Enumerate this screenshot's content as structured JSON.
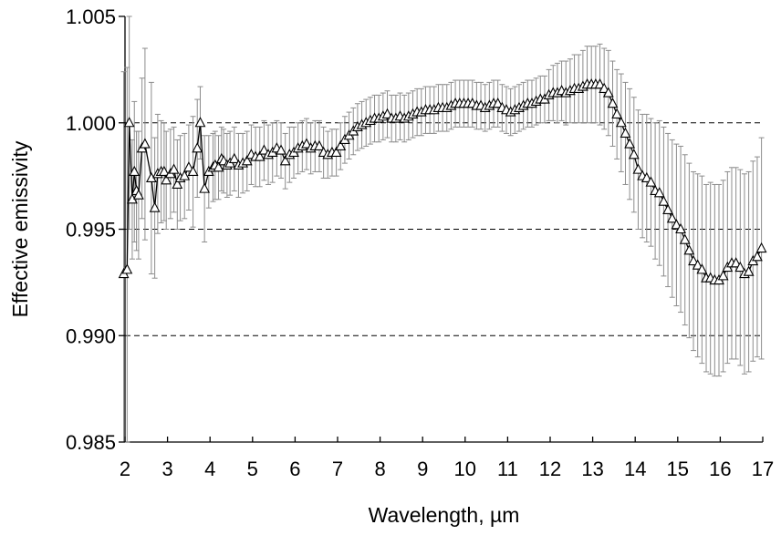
{
  "chart_data": {
    "type": "line",
    "title": "",
    "xlabel": "Wavelength, µm",
    "ylabel": "Effective emissivity",
    "xlim": [
      2,
      17
    ],
    "ylim": [
      0.985,
      1.005
    ],
    "x_ticks": [
      "2",
      "3",
      "4",
      "5",
      "6",
      "7",
      "8",
      "9",
      "10",
      "11",
      "12",
      "13",
      "14",
      "15",
      "16",
      "17"
    ],
    "y_ticks": [
      "0.985",
      "0.990",
      "0.995",
      "1.000",
      "1.005"
    ],
    "grid": "dashed horizontal at 0.990, 0.995, 1.000",
    "marker": "open triangle",
    "series": [
      {
        "x": [
          1.97,
          2.05,
          2.1,
          2.17,
          2.22,
          2.27,
          2.32,
          2.4,
          2.47,
          2.62,
          2.7,
          2.77,
          2.85,
          2.92,
          2.97,
          3.07,
          3.15,
          3.23,
          3.3,
          3.4,
          3.5,
          3.6,
          3.7,
          3.77,
          3.87,
          3.97,
          4.07,
          4.12,
          4.2,
          4.27,
          4.32,
          4.4,
          4.47,
          4.57,
          4.67,
          4.77,
          4.87,
          4.97,
          5.07,
          5.17,
          5.27,
          5.37,
          5.47,
          5.57,
          5.67,
          5.77,
          5.87,
          5.97,
          6.07,
          6.17,
          6.27,
          6.37,
          6.47,
          6.57,
          6.67,
          6.77,
          6.87,
          6.97,
          7.07,
          7.17,
          7.27,
          7.37,
          7.47,
          7.57,
          7.67,
          7.77,
          7.87,
          7.97,
          8.07,
          8.17,
          8.27,
          8.37,
          8.47,
          8.57,
          8.67,
          8.77,
          8.87,
          8.97,
          9.07,
          9.17,
          9.27,
          9.37,
          9.47,
          9.57,
          9.67,
          9.77,
          9.87,
          9.97,
          10.07,
          10.17,
          10.27,
          10.37,
          10.47,
          10.57,
          10.67,
          10.77,
          10.87,
          10.97,
          11.07,
          11.17,
          11.27,
          11.37,
          11.47,
          11.57,
          11.67,
          11.77,
          11.87,
          11.97,
          12.07,
          12.17,
          12.27,
          12.37,
          12.47,
          12.57,
          12.67,
          12.77,
          12.87,
          12.97,
          13.07,
          13.17,
          13.27,
          13.37,
          13.47,
          13.57,
          13.67,
          13.77,
          13.87,
          13.97,
          14.07,
          14.17,
          14.27,
          14.37,
          14.47,
          14.57,
          14.67,
          14.77,
          14.87,
          14.97,
          15.07,
          15.17,
          15.27,
          15.37,
          15.47,
          15.57,
          15.67,
          15.77,
          15.87,
          15.97,
          16.07,
          16.17,
          16.27,
          16.37,
          16.47,
          16.57,
          16.67,
          16.77,
          16.87,
          16.97
        ],
        "y": [
          0.9929,
          0.9931,
          1.0,
          0.9964,
          0.9977,
          0.9968,
          0.9966,
          0.9988,
          0.999,
          0.9974,
          0.996,
          0.9976,
          0.9977,
          0.9977,
          0.9973,
          0.9976,
          0.9978,
          0.9971,
          0.9974,
          0.9975,
          0.9979,
          0.9977,
          0.9988,
          1.0,
          0.9969,
          0.9977,
          0.9979,
          0.998,
          0.9979,
          0.9983,
          0.9982,
          0.998,
          0.9981,
          0.9983,
          0.998,
          0.9981,
          0.9982,
          0.9985,
          0.9984,
          0.9984,
          0.9987,
          0.9985,
          0.9986,
          0.9988,
          0.9987,
          0.9982,
          0.9985,
          0.9986,
          0.9988,
          0.9989,
          0.999,
          0.9988,
          0.9989,
          0.9989,
          0.9986,
          0.9985,
          0.9986,
          0.9986,
          0.9989,
          0.9992,
          0.9994,
          0.9996,
          0.9998,
          0.9999,
          1.0,
          1.0001,
          1.0002,
          1.0002,
          1.0003,
          1.0004,
          1.0002,
          1.0002,
          1.0003,
          1.0002,
          1.0003,
          1.0004,
          1.0005,
          1.0005,
          1.0006,
          1.0006,
          1.0006,
          1.0007,
          1.0007,
          1.0007,
          1.0008,
          1.0009,
          1.0009,
          1.0009,
          1.0009,
          1.0009,
          1.0008,
          1.0008,
          1.0007,
          1.0008,
          1.0009,
          1.0009,
          1.0007,
          1.0006,
          1.0005,
          1.0006,
          1.0007,
          1.0008,
          1.0009,
          1.0009,
          1.001,
          1.0011,
          1.0011,
          1.0013,
          1.0014,
          1.0014,
          1.0015,
          1.0014,
          1.0015,
          1.0016,
          1.0016,
          1.0017,
          1.0018,
          1.0018,
          1.0018,
          1.0018,
          1.0016,
          1.0014,
          1.0009,
          1.0004,
          1.0,
          0.9995,
          0.999,
          0.9985,
          0.9978,
          0.9975,
          0.9974,
          0.9972,
          0.9968,
          0.9967,
          0.9963,
          0.9959,
          0.9955,
          0.9952,
          0.995,
          0.9945,
          0.994,
          0.9935,
          0.9933,
          0.9931,
          0.9927,
          0.9927,
          0.9926,
          0.9926,
          0.9928,
          0.9932,
          0.9934,
          0.9934,
          0.9932,
          0.9929,
          0.993,
          0.9935,
          0.9937,
          0.9941
        ],
        "err": [
          0.0095,
          0.0095,
          0.005,
          0.0028,
          0.0033,
          0.0028,
          0.003,
          0.0033,
          0.0045,
          0.0045,
          0.0033,
          0.0028,
          0.0024,
          0.0023,
          0.0023,
          0.0021,
          0.002,
          0.0021,
          0.002,
          0.002,
          0.002,
          0.0026,
          0.0023,
          0.0017,
          0.0025,
          0.0017,
          0.0016,
          0.0016,
          0.0015,
          0.0015,
          0.0015,
          0.0015,
          0.0015,
          0.0015,
          0.0015,
          0.0014,
          0.0014,
          0.0014,
          0.0014,
          0.0014,
          0.0014,
          0.0014,
          0.0014,
          0.0013,
          0.0013,
          0.0013,
          0.0013,
          0.0012,
          0.0012,
          0.0012,
          0.0012,
          0.0012,
          0.0012,
          0.0012,
          0.0012,
          0.0011,
          0.0011,
          0.0011,
          0.0011,
          0.0011,
          0.0011,
          0.0011,
          0.0011,
          0.0011,
          0.0011,
          0.0011,
          0.0011,
          0.0011,
          0.0011,
          0.0011,
          0.0011,
          0.0011,
          0.0011,
          0.0011,
          0.0011,
          0.0011,
          0.0011,
          0.0011,
          0.0011,
          0.0011,
          0.0011,
          0.0011,
          0.0011,
          0.0011,
          0.0011,
          0.0011,
          0.0011,
          0.0011,
          0.0011,
          0.0011,
          0.0011,
          0.0011,
          0.0011,
          0.0011,
          0.0011,
          0.0011,
          0.0011,
          0.0011,
          0.0011,
          0.0011,
          0.0011,
          0.0011,
          0.0011,
          0.0011,
          0.0011,
          0.0011,
          0.0011,
          0.0012,
          0.0013,
          0.0014,
          0.0014,
          0.0015,
          0.0015,
          0.0016,
          0.0016,
          0.0017,
          0.0018,
          0.0018,
          0.0018,
          0.0019,
          0.0019,
          0.002,
          0.002,
          0.0021,
          0.0023,
          0.0024,
          0.0026,
          0.0027,
          0.0028,
          0.0029,
          0.003,
          0.003,
          0.0032,
          0.0034,
          0.0035,
          0.0036,
          0.0037,
          0.0038,
          0.0039,
          0.004,
          0.0041,
          0.0042,
          0.0043,
          0.0044,
          0.0044,
          0.0045,
          0.0045,
          0.0045,
          0.0045,
          0.0045,
          0.0045,
          0.0045,
          0.0046,
          0.0047,
          0.0047,
          0.0047,
          0.0047,
          0.0052
        ]
      }
    ]
  }
}
